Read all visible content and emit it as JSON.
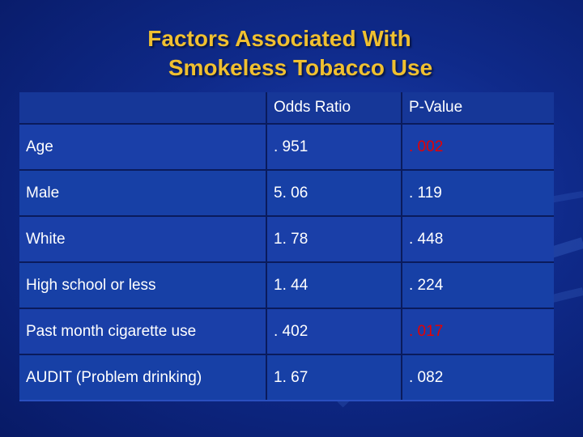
{
  "slide": {
    "title_line1": "Factors Associated With",
    "title_line2": "Smokeless Tobacco Use"
  },
  "table": {
    "headers": [
      "",
      "Odds Ratio",
      "P-Value"
    ],
    "rows": [
      {
        "factor": "Age",
        "odds_ratio": ". 951",
        "p_value": ". 002",
        "significant": true
      },
      {
        "factor": "Male",
        "odds_ratio": "5. 06",
        "p_value": ". 119",
        "significant": false
      },
      {
        "factor": "White",
        "odds_ratio": "1. 78",
        "p_value": ". 448",
        "significant": false
      },
      {
        "factor": "High school or less",
        "odds_ratio": "1. 44",
        "p_value": ". 224",
        "significant": false
      },
      {
        "factor": "Past month cigarette use",
        "odds_ratio": ". 402",
        "p_value": ". 017",
        "significant": true
      },
      {
        "factor": "AUDIT (Problem drinking)",
        "odds_ratio": "1. 67",
        "p_value": ". 082",
        "significant": false
      }
    ]
  },
  "colors": {
    "title": "#f0c030",
    "significant": "#e60000",
    "background": "#0f2a8a"
  }
}
